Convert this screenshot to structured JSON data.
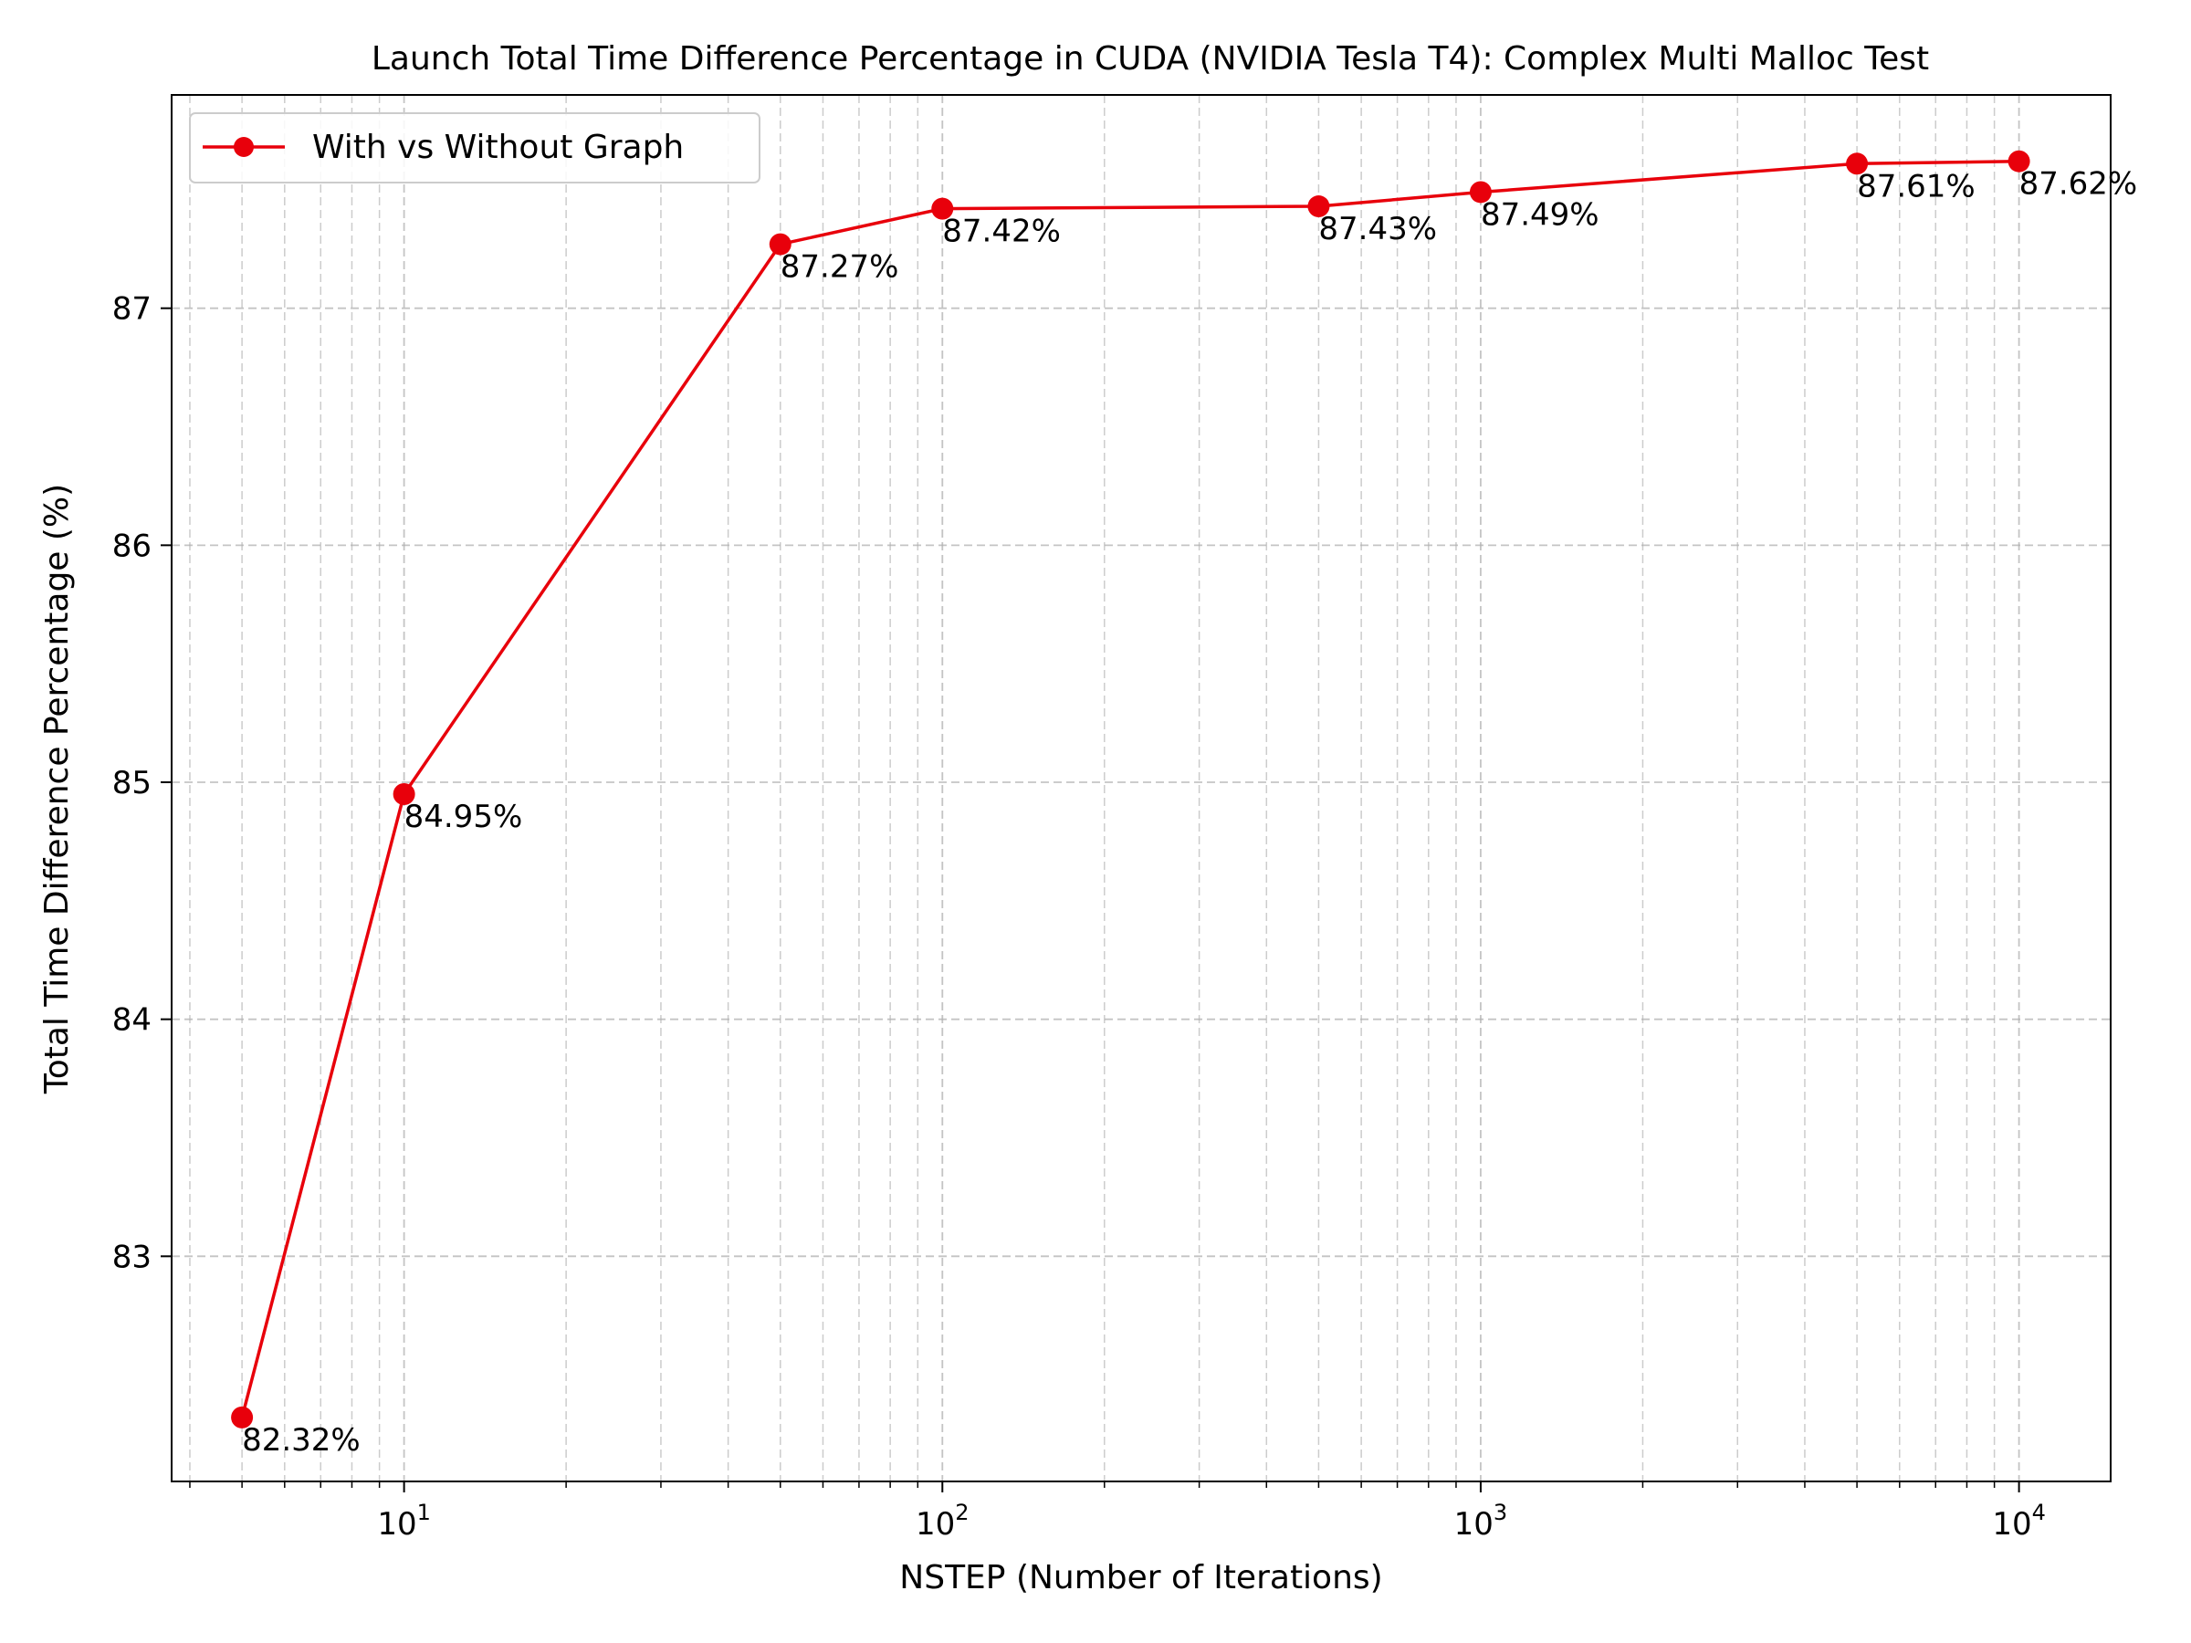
{
  "chart_data": {
    "type": "line",
    "title": "Launch Total Time Difference Percentage in CUDA (NVIDIA Tesla T4): Complex Multi Malloc Test",
    "xlabel": "NSTEP (Number of Iterations)",
    "ylabel": "Total Time Difference Percentage (%)",
    "x_scale": "log",
    "xlim": [
      3.7,
      14800
    ],
    "ylim": [
      82.05,
      87.9
    ],
    "grid": true,
    "legend_position": "upper-left",
    "x_ticks": [
      {
        "value": 10,
        "base": "10",
        "exp": "1"
      },
      {
        "value": 100,
        "base": "10",
        "exp": "2"
      },
      {
        "value": 1000,
        "base": "10",
        "exp": "3"
      },
      {
        "value": 10000,
        "base": "10",
        "exp": "4"
      }
    ],
    "y_ticks": [
      {
        "value": 83,
        "label": "83"
      },
      {
        "value": 84,
        "label": "84"
      },
      {
        "value": 85,
        "label": "85"
      },
      {
        "value": 86,
        "label": "86"
      },
      {
        "value": 87,
        "label": "87"
      }
    ],
    "series": [
      {
        "name": "With vs Without Graph",
        "color": "#e8000b",
        "marker": "circle",
        "x": [
          5,
          10,
          50,
          100,
          500,
          1000,
          5000,
          10000
        ],
        "y": [
          82.32,
          84.95,
          87.27,
          87.42,
          87.43,
          87.49,
          87.61,
          87.62
        ],
        "labels": [
          "82.32%",
          "84.95%",
          "87.27%",
          "87.42%",
          "87.43%",
          "87.49%",
          "87.61%",
          "87.62%"
        ]
      }
    ]
  }
}
